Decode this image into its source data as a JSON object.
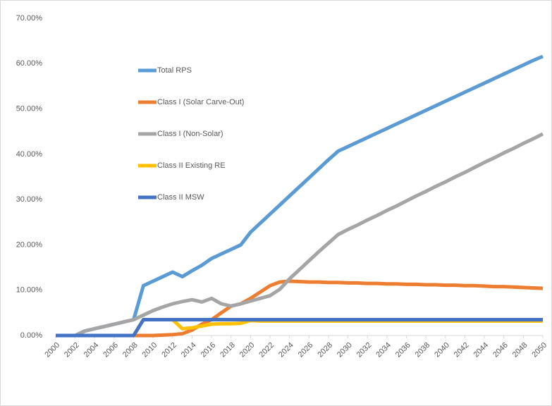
{
  "chart_data": {
    "type": "line",
    "x": [
      2000,
      2001,
      2002,
      2003,
      2004,
      2005,
      2006,
      2007,
      2008,
      2009,
      2010,
      2011,
      2012,
      2013,
      2014,
      2015,
      2016,
      2017,
      2018,
      2019,
      2020,
      2021,
      2022,
      2023,
      2024,
      2025,
      2026,
      2027,
      2028,
      2029,
      2030,
      2031,
      2032,
      2033,
      2034,
      2035,
      2036,
      2037,
      2038,
      2039,
      2040,
      2041,
      2042,
      2043,
      2044,
      2045,
      2046,
      2047,
      2048,
      2049,
      2050
    ],
    "xlim": [
      2000,
      2050
    ],
    "xticks": [
      2000,
      2002,
      2004,
      2006,
      2008,
      2010,
      2012,
      2014,
      2016,
      2018,
      2020,
      2022,
      2024,
      2026,
      2028,
      2030,
      2032,
      2034,
      2036,
      2038,
      2040,
      2042,
      2044,
      2046,
      2048,
      2050
    ],
    "ylim": [
      0,
      70
    ],
    "yticks": [
      {
        "value": 0,
        "label": "0.00%"
      },
      {
        "value": 10,
        "label": "10.00%"
      },
      {
        "value": 20,
        "label": "20.00%"
      },
      {
        "value": 30,
        "label": "30.00%"
      },
      {
        "value": 40,
        "label": "40.00%"
      },
      {
        "value": 50,
        "label": "50.00%"
      },
      {
        "value": 60,
        "label": "60.00%"
      },
      {
        "value": 70,
        "label": "70.00%"
      }
    ],
    "grid": false,
    "legend": "left",
    "series": [
      {
        "name": "Total RPS",
        "color": "#5b9bd5",
        "values": [
          0,
          0,
          0,
          1,
          1.5,
          2,
          2.5,
          3,
          3.5,
          11,
          12,
          13,
          14,
          13,
          14.3,
          15.5,
          17,
          18,
          19,
          20,
          22.8,
          24.8,
          26.8,
          28.8,
          30.8,
          32.8,
          34.8,
          36.8,
          38.8,
          40.7,
          41.7,
          42.7,
          43.7,
          44.7,
          45.7,
          46.7,
          47.7,
          48.7,
          49.7,
          50.7,
          51.7,
          52.7,
          53.7,
          54.7,
          55.7,
          56.7,
          57.7,
          58.7,
          59.7,
          60.7,
          61.6
        ]
      },
      {
        "name": "Class I (Solar Carve-Out)",
        "color": "#ed7d31",
        "values": [
          0,
          0,
          0,
          0,
          0,
          0,
          0,
          0,
          0,
          0,
          0,
          0.1,
          0.2,
          0.4,
          1.2,
          2.5,
          3.5,
          5,
          6.5,
          7,
          8.2,
          9.6,
          11,
          11.8,
          12,
          11.9,
          11.8,
          11.8,
          11.7,
          11.7,
          11.6,
          11.6,
          11.5,
          11.5,
          11.4,
          11.4,
          11.3,
          11.3,
          11.2,
          11.2,
          11.1,
          11.1,
          11,
          11,
          10.9,
          10.8,
          10.8,
          10.7,
          10.6,
          10.5,
          10.4
        ]
      },
      {
        "name": "Class I (Non-Solar)",
        "color": "#a5a5a5",
        "values": [
          0,
          0,
          0,
          1,
          1.5,
          2,
          2.5,
          3,
          3.5,
          4.5,
          5.5,
          6.3,
          7,
          7.5,
          7.9,
          7.4,
          8.2,
          7,
          6.5,
          7,
          7.6,
          8.2,
          8.8,
          10.2,
          12.5,
          14.5,
          16.5,
          18.5,
          20.4,
          22.3,
          23.4,
          24.4,
          25.5,
          26.5,
          27.6,
          28.6,
          29.7,
          30.8,
          31.8,
          32.9,
          33.9,
          35,
          36,
          37.1,
          38.2,
          39.2,
          40.3,
          41.3,
          42.4,
          43.4,
          44.5
        ]
      },
      {
        "name": "Class II Existing RE",
        "color": "#ffc000",
        "values": [
          0,
          0,
          0,
          0,
          0,
          0,
          0,
          0,
          0,
          3.5,
          3.5,
          3.5,
          3.5,
          1.5,
          1.7,
          2.1,
          2.5,
          2.6,
          2.6,
          2.7,
          3.3,
          3.2,
          3.2,
          3.2,
          3.2,
          3.2,
          3.2,
          3.2,
          3.2,
          3.2,
          3.2,
          3.2,
          3.2,
          3.2,
          3.2,
          3.2,
          3.2,
          3.2,
          3.2,
          3.2,
          3.2,
          3.2,
          3.2,
          3.2,
          3.2,
          3.2,
          3.2,
          3.2,
          3.2,
          3.2,
          3.2
        ]
      },
      {
        "name": "Class II MSW",
        "color": "#4472c4",
        "values": [
          0,
          0,
          0,
          0,
          0,
          0,
          0,
          0,
          0,
          3.5,
          3.5,
          3.5,
          3.5,
          3.5,
          3.5,
          3.5,
          3.5,
          3.5,
          3.5,
          3.5,
          3.5,
          3.5,
          3.5,
          3.5,
          3.5,
          3.5,
          3.5,
          3.5,
          3.5,
          3.5,
          3.5,
          3.5,
          3.5,
          3.5,
          3.5,
          3.5,
          3.5,
          3.5,
          3.5,
          3.5,
          3.5,
          3.5,
          3.5,
          3.5,
          3.5,
          3.5,
          3.5,
          3.5,
          3.5,
          3.5,
          3.5
        ]
      }
    ]
  }
}
